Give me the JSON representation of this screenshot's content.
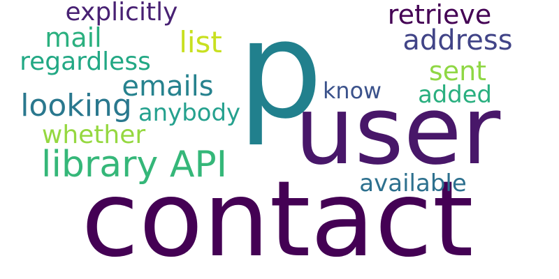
{
  "words": [
    {
      "id": "contact",
      "text": "contact",
      "color": "#440154"
    },
    {
      "id": "user",
      "text": "user",
      "color": "#481769"
    },
    {
      "id": "p",
      "text": "p",
      "color": "#21808d"
    },
    {
      "id": "library-api",
      "text": "library API",
      "color": "#35b779"
    },
    {
      "id": "looking",
      "text": "looking",
      "color": "#2a788e"
    },
    {
      "id": "emails",
      "text": "emails",
      "color": "#26828e"
    },
    {
      "id": "regardless",
      "text": "regardless",
      "color": "#22a884"
    },
    {
      "id": "mail",
      "text": "mail",
      "color": "#2bb07f"
    },
    {
      "id": "list",
      "text": "list",
      "color": "#c8e020"
    },
    {
      "id": "explicitly",
      "text": "explicitly",
      "color": "#482173"
    },
    {
      "id": "retrieve",
      "text": "retrieve",
      "color": "#440154"
    },
    {
      "id": "address",
      "text": "address",
      "color": "#414487"
    },
    {
      "id": "sent",
      "text": "sent",
      "color": "#8fd744"
    },
    {
      "id": "added",
      "text": "added",
      "color": "#29af7f"
    },
    {
      "id": "know",
      "text": "know",
      "color": "#3b528b"
    },
    {
      "id": "anybody",
      "text": "anybody",
      "color": "#25a18e"
    },
    {
      "id": "whether",
      "text": "whether",
      "color": "#95d840"
    },
    {
      "id": "available",
      "text": "available",
      "color": "#2d708e"
    }
  ]
}
